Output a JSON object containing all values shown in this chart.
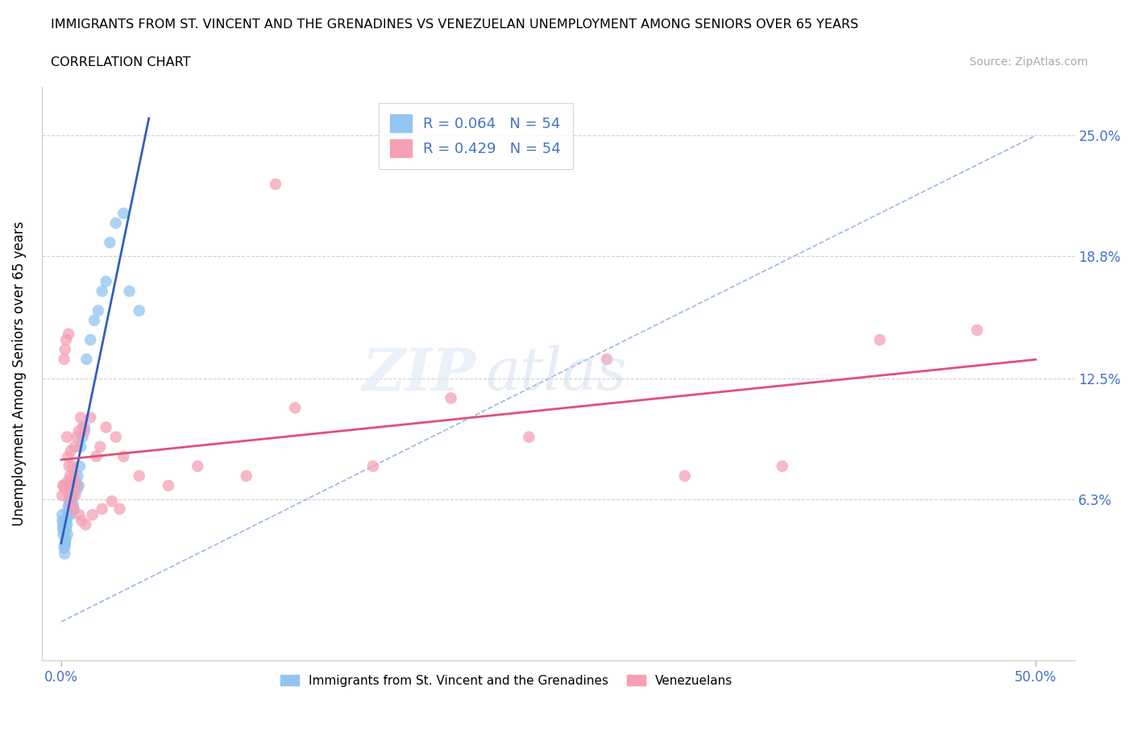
{
  "title": "IMMIGRANTS FROM ST. VINCENT AND THE GRENADINES VS VENEZUELAN UNEMPLOYMENT AMONG SENIORS OVER 65 YEARS",
  "subtitle": "CORRELATION CHART",
  "source": "Source: ZipAtlas.com",
  "ylabel": "Unemployment Among Seniors over 65 years",
  "x_tick_labels": [
    "0.0%",
    "50.0%"
  ],
  "y_tick_labels": [
    "",
    "6.3%",
    "12.5%",
    "18.8%",
    "25.0%"
  ],
  "y_ticks": [
    0.0,
    6.3,
    12.5,
    18.8,
    25.0
  ],
  "xlim": [
    -1.0,
    52.0
  ],
  "ylim": [
    -2.0,
    27.5
  ],
  "legend_entry1": "R = 0.064   N = 54",
  "legend_entry2": "R = 0.429   N = 54",
  "color_blue": "#92C5F0",
  "color_pink": "#F5A0B5",
  "line_color_blue": "#3060C0",
  "line_color_pink": "#E0507A",
  "dash_color": "#9BB8E8",
  "blue_x": [
    0.05,
    0.08,
    0.1,
    0.12,
    0.15,
    0.18,
    0.2,
    0.22,
    0.25,
    0.28,
    0.3,
    0.32,
    0.35,
    0.38,
    0.4,
    0.42,
    0.45,
    0.48,
    0.5,
    0.52,
    0.55,
    0.58,
    0.6,
    0.62,
    0.65,
    0.7,
    0.75,
    0.8,
    0.85,
    0.9,
    0.95,
    1.0,
    1.1,
    1.2,
    1.3,
    1.5,
    1.7,
    1.9,
    2.1,
    2.3,
    2.5,
    2.8,
    3.2,
    3.5,
    4.0,
    0.06,
    0.09,
    0.13,
    0.16,
    0.19,
    0.23,
    0.27,
    0.33,
    0.43
  ],
  "blue_y": [
    5.5,
    4.8,
    4.5,
    5.0,
    3.8,
    3.5,
    4.0,
    4.2,
    4.8,
    5.2,
    5.0,
    4.5,
    5.5,
    6.0,
    5.8,
    6.2,
    5.5,
    6.0,
    6.5,
    6.2,
    7.0,
    6.8,
    6.5,
    6.0,
    5.8,
    7.0,
    7.2,
    6.8,
    7.5,
    7.0,
    8.0,
    9.0,
    9.5,
    10.0,
    13.5,
    14.5,
    15.5,
    16.0,
    17.0,
    17.5,
    19.5,
    20.5,
    21.0,
    17.0,
    16.0,
    5.2,
    4.9,
    5.1,
    4.7,
    3.9,
    4.3,
    5.3,
    5.7,
    6.1
  ],
  "pink_x": [
    0.05,
    0.1,
    0.15,
    0.2,
    0.25,
    0.3,
    0.35,
    0.38,
    0.4,
    0.45,
    0.5,
    0.55,
    0.6,
    0.65,
    0.7,
    0.8,
    0.9,
    1.0,
    1.1,
    1.2,
    1.5,
    1.8,
    2.0,
    2.3,
    2.8,
    3.2,
    4.0,
    5.5,
    7.0,
    9.5,
    12.0,
    16.0,
    20.0,
    24.0,
    28.0,
    32.0,
    37.0,
    42.0,
    47.0,
    0.12,
    0.22,
    0.32,
    0.42,
    0.52,
    0.62,
    0.72,
    0.82,
    0.92,
    1.05,
    1.25,
    1.6,
    2.1,
    2.6,
    3.0
  ],
  "pink_y": [
    6.5,
    7.0,
    13.5,
    14.0,
    14.5,
    9.5,
    8.5,
    14.8,
    8.0,
    7.5,
    8.8,
    7.2,
    8.0,
    7.5,
    9.0,
    9.5,
    9.8,
    10.5,
    10.0,
    9.8,
    10.5,
    8.5,
    9.0,
    10.0,
    9.5,
    8.5,
    7.5,
    7.0,
    8.0,
    7.5,
    11.0,
    8.0,
    11.5,
    9.5,
    13.5,
    7.5,
    8.0,
    14.5,
    15.0,
    7.0,
    6.8,
    7.2,
    6.5,
    6.0,
    5.8,
    6.5,
    7.0,
    5.5,
    5.2,
    5.0,
    5.5,
    5.8,
    6.2,
    5.8
  ],
  "pink_outlier_x": [
    11.0
  ],
  "pink_outlier_y": [
    22.5
  ]
}
